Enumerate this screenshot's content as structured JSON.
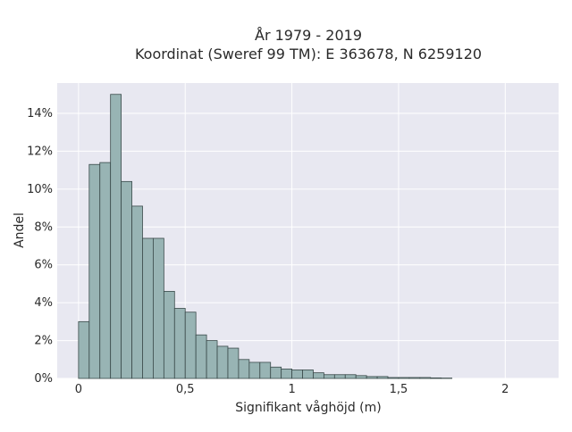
{
  "chart_data": {
    "type": "bar",
    "title_line1": "År 1979 - 2019",
    "title_line2": "Koordinat (Sweref 99 TM): E 363678, N 6259120",
    "xlabel": "Signifikant våghöjd (m)",
    "ylabel": "Andel",
    "xlim": [
      -0.1,
      2.25
    ],
    "ylim": [
      0,
      15.6
    ],
    "bin_width": 0.05,
    "x_ticks": [
      {
        "value": 0,
        "label": "0"
      },
      {
        "value": 0.5,
        "label": "0,5"
      },
      {
        "value": 1,
        "label": "1"
      },
      {
        "value": 1.5,
        "label": "1,5"
      },
      {
        "value": 2,
        "label": "2"
      }
    ],
    "y_ticks": [
      {
        "value": 0,
        "label": "0%"
      },
      {
        "value": 2,
        "label": "2%"
      },
      {
        "value": 4,
        "label": "4%"
      },
      {
        "value": 6,
        "label": "6%"
      },
      {
        "value": 8,
        "label": "8%"
      },
      {
        "value": 10,
        "label": "10%"
      },
      {
        "value": 12,
        "label": "12%"
      },
      {
        "value": 14,
        "label": "14%"
      }
    ],
    "grid": true,
    "bins": [
      {
        "x0": 0.0,
        "x1": 0.05,
        "value": 3.0
      },
      {
        "x0": 0.05,
        "x1": 0.1,
        "value": 11.3
      },
      {
        "x0": 0.1,
        "x1": 0.15,
        "value": 11.4
      },
      {
        "x0": 0.15,
        "x1": 0.2,
        "value": 15.0
      },
      {
        "x0": 0.2,
        "x1": 0.25,
        "value": 10.4
      },
      {
        "x0": 0.25,
        "x1": 0.3,
        "value": 9.1
      },
      {
        "x0": 0.3,
        "x1": 0.35,
        "value": 7.4
      },
      {
        "x0": 0.35,
        "x1": 0.4,
        "value": 7.4
      },
      {
        "x0": 0.4,
        "x1": 0.45,
        "value": 4.6
      },
      {
        "x0": 0.45,
        "x1": 0.5,
        "value": 3.7
      },
      {
        "x0": 0.5,
        "x1": 0.55,
        "value": 3.5
      },
      {
        "x0": 0.55,
        "x1": 0.6,
        "value": 2.3
      },
      {
        "x0": 0.6,
        "x1": 0.65,
        "value": 2.0
      },
      {
        "x0": 0.65,
        "x1": 0.7,
        "value": 1.7
      },
      {
        "x0": 0.7,
        "x1": 0.75,
        "value": 1.6
      },
      {
        "x0": 0.75,
        "x1": 0.8,
        "value": 1.0
      },
      {
        "x0": 0.8,
        "x1": 0.85,
        "value": 0.85
      },
      {
        "x0": 0.85,
        "x1": 0.9,
        "value": 0.85
      },
      {
        "x0": 0.9,
        "x1": 0.95,
        "value": 0.6
      },
      {
        "x0": 0.95,
        "x1": 1.0,
        "value": 0.5
      },
      {
        "x0": 1.0,
        "x1": 1.05,
        "value": 0.45
      },
      {
        "x0": 1.05,
        "x1": 1.1,
        "value": 0.45
      },
      {
        "x0": 1.1,
        "x1": 1.15,
        "value": 0.3
      },
      {
        "x0": 1.15,
        "x1": 1.2,
        "value": 0.2
      },
      {
        "x0": 1.2,
        "x1": 1.25,
        "value": 0.2
      },
      {
        "x0": 1.25,
        "x1": 1.3,
        "value": 0.2
      },
      {
        "x0": 1.3,
        "x1": 1.35,
        "value": 0.15
      },
      {
        "x0": 1.35,
        "x1": 1.4,
        "value": 0.1
      },
      {
        "x0": 1.4,
        "x1": 1.45,
        "value": 0.1
      },
      {
        "x0": 1.45,
        "x1": 1.5,
        "value": 0.05
      },
      {
        "x0": 1.5,
        "x1": 1.55,
        "value": 0.05
      },
      {
        "x0": 1.55,
        "x1": 1.6,
        "value": 0.05
      },
      {
        "x0": 1.6,
        "x1": 1.65,
        "value": 0.05
      },
      {
        "x0": 1.65,
        "x1": 1.7,
        "value": 0.03
      },
      {
        "x0": 1.7,
        "x1": 1.75,
        "value": 0.02
      }
    ],
    "colors": {
      "plot_background": "#e8e8f1",
      "grid": "#ffffff",
      "bar_fill": "#98b4b4",
      "bar_stroke": "#3a4a4a"
    }
  }
}
